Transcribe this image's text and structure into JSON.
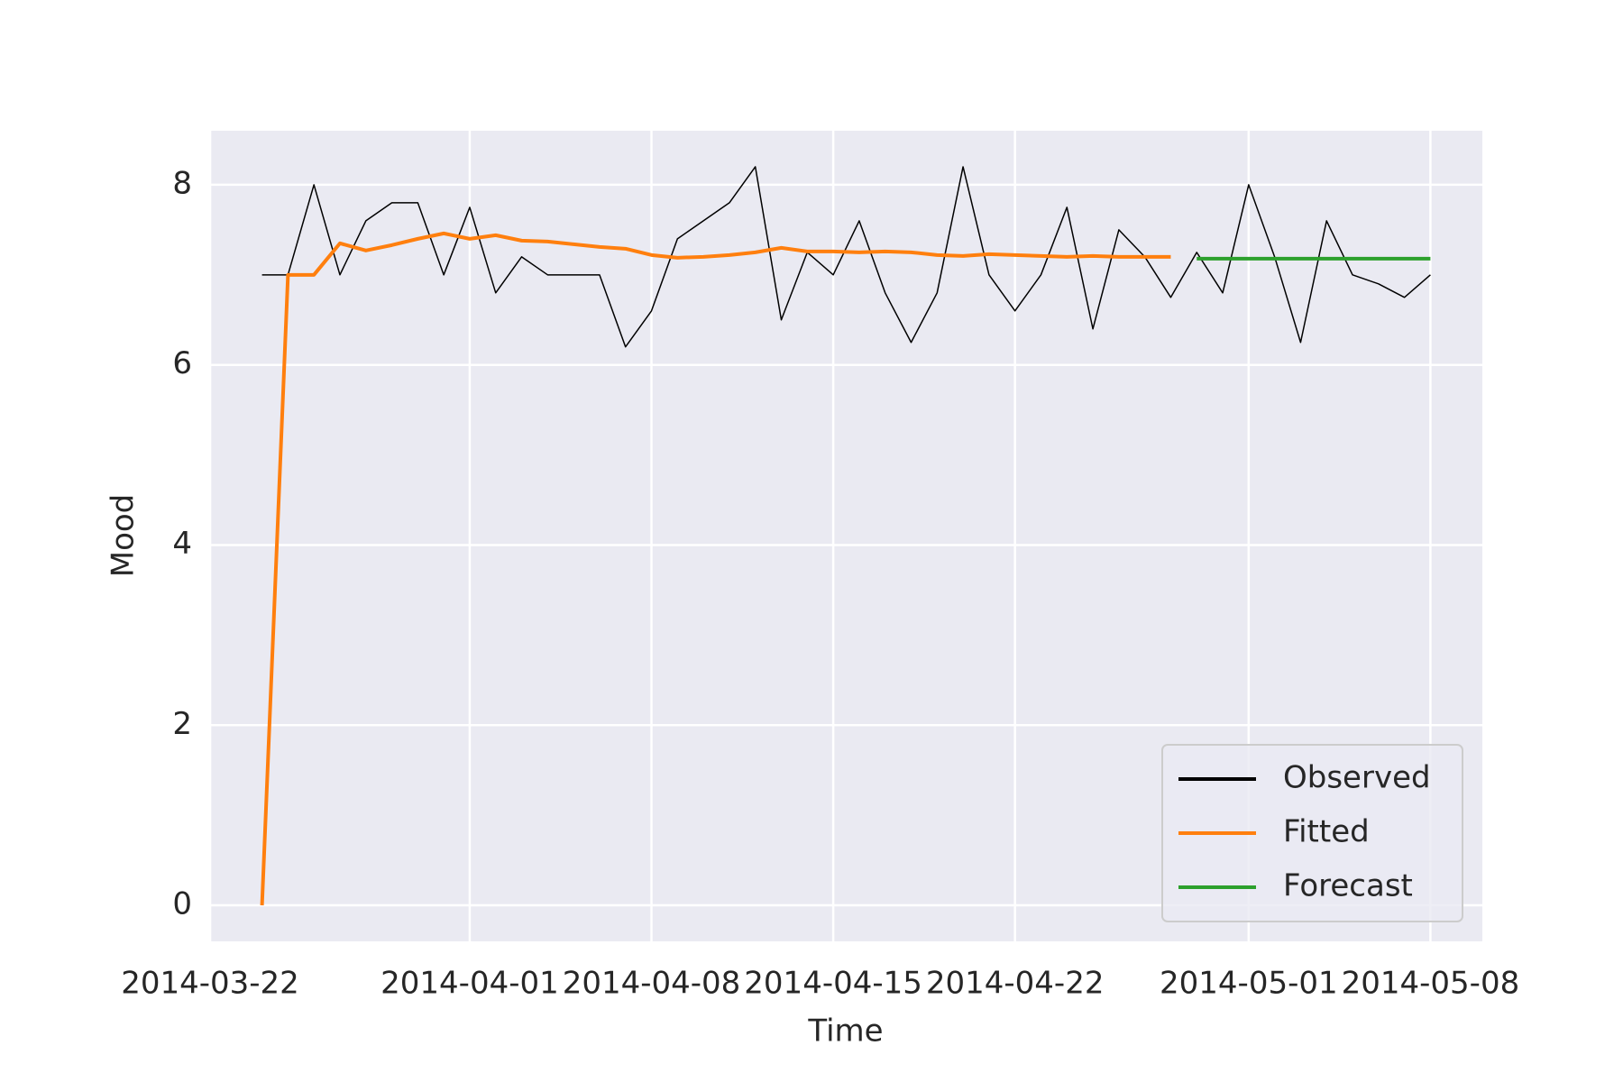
{
  "chart_data": {
    "type": "line",
    "xlabel": "Time",
    "ylabel": "Mood",
    "xlim": [
      "2014-03-22",
      "2014-05-10"
    ],
    "xticks": [
      "2014-03-22",
      "2014-04-01",
      "2014-04-08",
      "2014-04-15",
      "2014-04-22",
      "2014-05-01",
      "2014-05-08"
    ],
    "ylim": [
      -0.4,
      8.6
    ],
    "yticks": [
      0,
      2,
      4,
      6,
      8
    ],
    "grid": true,
    "legend": "lower right",
    "series": [
      {
        "name": "Observed",
        "color": "#000000",
        "width": 1.5,
        "x": [
          "2014-03-24",
          "2014-03-25",
          "2014-03-26",
          "2014-03-27",
          "2014-03-28",
          "2014-03-29",
          "2014-03-30",
          "2014-03-31",
          "2014-04-01",
          "2014-04-02",
          "2014-04-03",
          "2014-04-04",
          "2014-04-05",
          "2014-04-06",
          "2014-04-07",
          "2014-04-08",
          "2014-04-09",
          "2014-04-10",
          "2014-04-11",
          "2014-04-12",
          "2014-04-13",
          "2014-04-14",
          "2014-04-15",
          "2014-04-16",
          "2014-04-17",
          "2014-04-18",
          "2014-04-19",
          "2014-04-20",
          "2014-04-21",
          "2014-04-22",
          "2014-04-23",
          "2014-04-24",
          "2014-04-25",
          "2014-04-26",
          "2014-04-27",
          "2014-04-28",
          "2014-04-29",
          "2014-04-30",
          "2014-05-01",
          "2014-05-02",
          "2014-05-03",
          "2014-05-04",
          "2014-05-05",
          "2014-05-06",
          "2014-05-07",
          "2014-05-08"
        ],
        "values": [
          7,
          7,
          8,
          7,
          7.6,
          7.8,
          7.8,
          7,
          7.75,
          6.8,
          7.2,
          7,
          7,
          7,
          6.2,
          6.6,
          7.4,
          7.6,
          7.8,
          8.2,
          6.5,
          7.25,
          7,
          7.6,
          6.8,
          6.25,
          6.8,
          8.2,
          7,
          6.6,
          7,
          7.75,
          6.4,
          7.5,
          7.2,
          6.75,
          7.25,
          6.8,
          8,
          7.2,
          6.25,
          7.6,
          7,
          6.9,
          6.75,
          7
        ]
      },
      {
        "name": "Fitted",
        "color": "#ff7f0e",
        "width": 4,
        "x": [
          "2014-03-24",
          "2014-03-25",
          "2014-03-26",
          "2014-03-27",
          "2014-03-28",
          "2014-03-29",
          "2014-03-30",
          "2014-03-31",
          "2014-04-01",
          "2014-04-02",
          "2014-04-03",
          "2014-04-04",
          "2014-04-05",
          "2014-04-06",
          "2014-04-07",
          "2014-04-08",
          "2014-04-09",
          "2014-04-10",
          "2014-04-11",
          "2014-04-12",
          "2014-04-13",
          "2014-04-14",
          "2014-04-15",
          "2014-04-16",
          "2014-04-17",
          "2014-04-18",
          "2014-04-19",
          "2014-04-20",
          "2014-04-21",
          "2014-04-22",
          "2014-04-23",
          "2014-04-24",
          "2014-04-25",
          "2014-04-26",
          "2014-04-27",
          "2014-04-28"
        ],
        "values": [
          0,
          7,
          7,
          7.35,
          7.27,
          7.33,
          7.4,
          7.46,
          7.4,
          7.44,
          7.38,
          7.37,
          7.34,
          7.31,
          7.29,
          7.22,
          7.19,
          7.2,
          7.22,
          7.25,
          7.3,
          7.26,
          7.26,
          7.25,
          7.26,
          7.25,
          7.22,
          7.21,
          7.23,
          7.22,
          7.21,
          7.2,
          7.21,
          7.2,
          7.2,
          7.2
        ]
      },
      {
        "name": "Forecast",
        "color": "#2ca02c",
        "width": 4,
        "x": [
          "2014-04-29",
          "2014-04-30",
          "2014-05-01",
          "2014-05-02",
          "2014-05-03",
          "2014-05-04",
          "2014-05-05",
          "2014-05-06",
          "2014-05-07",
          "2014-05-08"
        ],
        "values": [
          7.18,
          7.18,
          7.18,
          7.18,
          7.18,
          7.18,
          7.18,
          7.18,
          7.18,
          7.18
        ]
      }
    ]
  }
}
